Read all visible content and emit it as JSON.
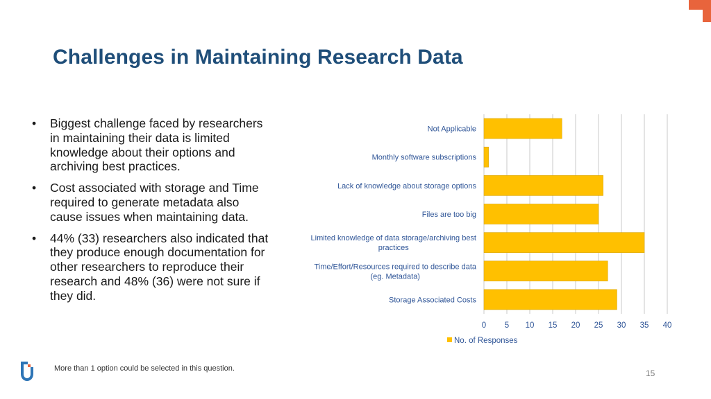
{
  "slide": {
    "title": "Challenges in Maintaining Research Data",
    "bullets": [
      "Biggest challenge faced by researchers in maintaining their data is limited knowledge about their options and archiving best practices.",
      "Cost associated with storage and Time required to generate metadata also cause issues when maintaining data.",
      "44% (33) researchers also indicated that they produce enough documentation for other researchers to reproduce their research and 48% (36) were not sure if they did."
    ],
    "footnote": "More than 1 option could be selected in this question.",
    "page_number": "15"
  },
  "colors": {
    "title": "#1f4e79",
    "bar_fill": "#ffc000",
    "bar_stroke": "#d9a300",
    "label": "#2f5597",
    "accent": "#e8643c",
    "logo": "#2e75b6"
  },
  "icons": {
    "logo": "institution-logo",
    "corner": "corner-accent"
  },
  "chart_data": {
    "type": "bar",
    "orientation": "horizontal",
    "categories": [
      "Not Applicable",
      "Monthly software subscriptions",
      "Lack of knowledge about storage options",
      "Files are too big",
      "Limited knowledge of data storage/archiving best practices",
      "Time/Effort/Resources required to describe data (eg. Metadata)",
      "Storage Associated Costs"
    ],
    "category_lines": [
      [
        "Not Applicable"
      ],
      [
        "Monthly software subscriptions"
      ],
      [
        "Lack of knowledge about storage options"
      ],
      [
        "Files are too big"
      ],
      [
        "Limited knowledge of data storage/archiving best",
        "practices"
      ],
      [
        "Time/Effort/Resources required to describe data",
        "(eg. Metadata)"
      ],
      [
        "Storage Associated Costs"
      ]
    ],
    "series": [
      {
        "name": "No. of Responses",
        "values": [
          17,
          1,
          26,
          25,
          35,
          27,
          29
        ]
      }
    ],
    "xlim": [
      0,
      40
    ],
    "xticks": [
      0,
      5,
      10,
      15,
      20,
      25,
      30,
      35,
      40
    ],
    "grid": true,
    "legend": "bottom",
    "title": "",
    "xlabel": "",
    "ylabel": ""
  }
}
